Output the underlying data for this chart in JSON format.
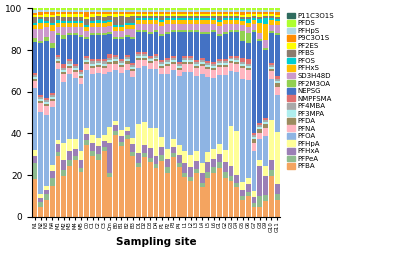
{
  "compounds_bottom_to_top": [
    "PFBA",
    "PFPeA",
    "PFHxA",
    "PFHpA",
    "PFOA",
    "PFNA",
    "PFDA",
    "PF3MPA",
    "PF4MBA",
    "NMPFSMA",
    "NEPSG",
    "PF2M3OA",
    "SD3H48D",
    "PFHxS",
    "PFOS",
    "PFBS",
    "PF2ES",
    "P9C3O1S",
    "PFHpS",
    "PFDS",
    "P11C3O1S"
  ],
  "colors": {
    "PFBA": "#F4A460",
    "PFPeA": "#8FBC8F",
    "PFHxA": "#9B7FB6",
    "PFHpA": "#FFFF99",
    "PFOA": "#8EB4E3",
    "PFNA": "#FFB6C1",
    "PFDA": "#9B8B5E",
    "PF3MPA": "#AFEEEE",
    "PF4MBA": "#A9A9A9",
    "NMPFSMA": "#E07070",
    "NEPSG": "#4472C4",
    "PF2M3OA": "#92D050",
    "SD3H48D": "#CC99CC",
    "PFHxS": "#FFC000",
    "PFOS": "#00CED1",
    "PFBS": "#8B7B6E",
    "PF2ES": "#FFFF00",
    "P9C3O1S": "#FF8C00",
    "PFHpS": "#ADD8E6",
    "PFDS": "#ADFF2F",
    "P11C3O1S": "#2E6B5E"
  },
  "sites": [
    "N1",
    "N2",
    "N3",
    "N4",
    "M1",
    "M2",
    "M3",
    "M4",
    "M5",
    "C0",
    "C1",
    "C2",
    "C3",
    "Cm",
    "B0",
    "B1",
    "B2",
    "B3",
    "D1",
    "D2",
    "D3",
    "D4",
    "P1",
    "P2",
    "P3",
    "P4",
    "L1",
    "L2",
    "L3",
    "L4",
    "L5",
    "L6",
    "G1",
    "G2",
    "G3",
    "G4",
    "G5",
    "G6",
    "G7",
    "G8",
    "G9",
    "G10",
    "G11"
  ],
  "xlabel": "Sampling site",
  "ylim": [
    0,
    100
  ]
}
